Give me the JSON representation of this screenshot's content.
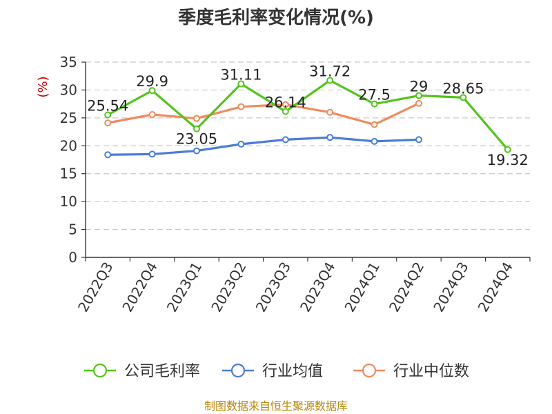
{
  "chart_data": {
    "type": "line",
    "title": "季度毛利率变化情况(%)",
    "ylabel": "(%)",
    "xlabel": "",
    "ylim": [
      0,
      35
    ],
    "yticks": [
      0,
      5,
      10,
      15,
      20,
      25,
      30,
      35
    ],
    "grid": true,
    "legend_position": "bottom",
    "categories": [
      "2022Q3",
      "2022Q4",
      "2023Q1",
      "2023Q2",
      "2023Q3",
      "2023Q4",
      "2024Q1",
      "2024Q2",
      "2024Q3",
      "2024Q4"
    ],
    "series": [
      {
        "name": "公司毛利率",
        "color": "#52c41a",
        "values": [
          25.54,
          29.9,
          23.05,
          31.11,
          26.14,
          31.72,
          27.5,
          29,
          28.65,
          19.32
        ],
        "labels": [
          "25.54",
          "29.9",
          "23.05",
          "31.11",
          "26.14",
          "31.72",
          "27.5",
          "29",
          "28.65",
          "19.32"
        ]
      },
      {
        "name": "行业均值",
        "color": "#4a7bd8",
        "values": [
          18.4,
          18.5,
          19.1,
          20.3,
          21.1,
          21.5,
          20.8,
          21.1,
          null,
          null
        ]
      },
      {
        "name": "行业中位数",
        "color": "#f08a5d",
        "values": [
          24.1,
          25.6,
          24.9,
          27.0,
          27.4,
          26.0,
          23.8,
          27.6,
          null,
          null
        ]
      }
    ],
    "source": "制图数据来自恒生聚源数据库"
  }
}
